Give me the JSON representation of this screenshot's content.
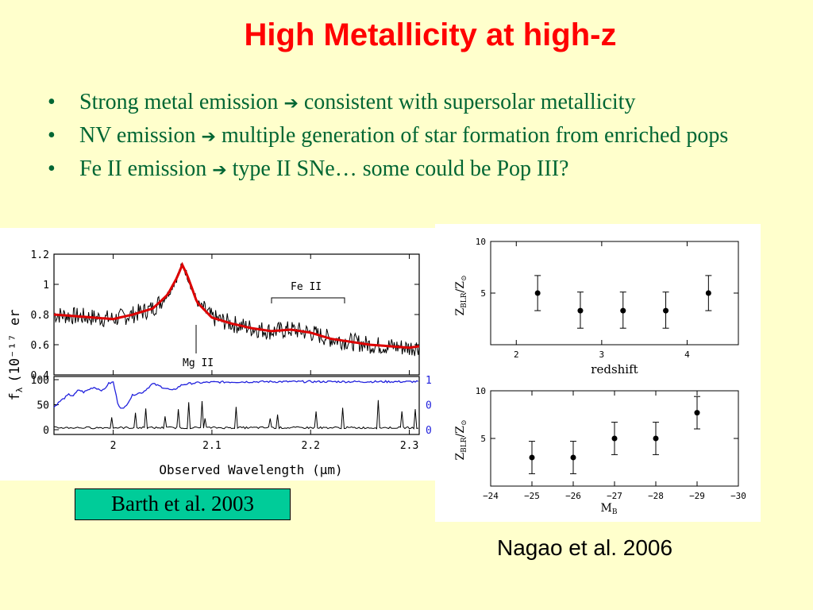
{
  "slide": {
    "title": "High Metallicity at high-z",
    "bullets": [
      {
        "before": "Strong metal emission ",
        "arrow": "➔",
        "after": " consistent with supersolar metallicity"
      },
      {
        "before": "NV emission ",
        "arrow": "➔",
        "after": " multiple generation of star formation from enriched pops"
      },
      {
        "before": "Fe II emission ",
        "arrow": "➔",
        "after": " type II SNe… some could be Pop III?"
      }
    ],
    "bullet_char": "•",
    "caption_left": "Barth et al. 2003",
    "caption_right": "Nagao et al. 2006",
    "colors": {
      "title": "#ff0000",
      "bullets": "#006633",
      "background": "#ffffcc",
      "caption_box": "#00cc99"
    }
  },
  "chart_data": [
    {
      "type": "line",
      "name": "spectrum",
      "ylabel": "f",
      "ylabel_sub": "λ",
      "ylabel_unit": "(10⁻¹⁷ er",
      "xlim": [
        1.94,
        2.31
      ],
      "ylim": [
        0.4,
        1.2
      ],
      "y_ticks": [
        "0.4",
        "0.6",
        "0.8",
        "1",
        "1.2"
      ],
      "annotations": {
        "mgii": "Mg II",
        "feii": "Fe II"
      },
      "colors": {
        "data": "#000000",
        "fit": "#dd0000"
      },
      "fit": {
        "x": [
          1.94,
          1.96,
          1.98,
          2.0,
          2.02,
          2.04,
          2.055,
          2.065,
          2.07,
          2.075,
          2.085,
          2.1,
          2.12,
          2.14,
          2.16,
          2.18,
          2.2,
          2.22,
          2.24,
          2.26,
          2.28,
          2.3,
          2.31
        ],
        "y": [
          0.8,
          0.79,
          0.78,
          0.77,
          0.8,
          0.84,
          0.93,
          1.05,
          1.13,
          1.06,
          0.88,
          0.78,
          0.74,
          0.71,
          0.69,
          0.7,
          0.68,
          0.64,
          0.62,
          0.6,
          0.59,
          0.58,
          0.59
        ]
      }
    },
    {
      "type": "line",
      "name": "transmission",
      "xlabel": "Observed Wavelength (μm)",
      "xlim": [
        1.94,
        2.31
      ],
      "ylim": [
        0,
        100
      ],
      "x_ticks": [
        "2",
        "2.1",
        "2.2",
        "2.3"
      ],
      "y_ticks": [
        "0",
        "50",
        "100"
      ],
      "right_ticks": [
        "0",
        "0",
        "1"
      ],
      "colors": {
        "atmos": "#2222dd",
        "sky": "#000000"
      },
      "atmos": {
        "x": [
          1.94,
          1.945,
          1.955,
          1.96,
          1.965,
          1.97,
          1.98,
          1.99,
          1.995,
          2.0,
          2.005,
          2.01,
          2.02,
          2.03,
          2.04,
          2.05,
          2.06,
          2.07,
          2.08,
          2.1,
          2.15,
          2.2,
          2.25,
          2.31
        ],
        "y": [
          45,
          55,
          70,
          68,
          80,
          75,
          85,
          78,
          92,
          95,
          50,
          40,
          70,
          75,
          92,
          85,
          78,
          90,
          93,
          95,
          96,
          96,
          96,
          96
        ]
      }
    },
    {
      "type": "scatter",
      "name": "redshift-panel",
      "xlabel": "redshift",
      "ylabel": "Z",
      "ylabel_sub": "BLR",
      "ylabel_tail": "/Z",
      "ylabel_sub2": "⊙",
      "xlim": [
        1.7,
        4.6
      ],
      "ylim": [
        0,
        10
      ],
      "x_ticks": [
        "2",
        "3",
        "4"
      ],
      "y_ticks": [
        "5",
        "10"
      ],
      "points": [
        {
          "x": 2.25,
          "y": 5.0,
          "lo": 3.3,
          "hi": 6.7
        },
        {
          "x": 2.75,
          "y": 3.3,
          "lo": 1.6,
          "hi": 5.1
        },
        {
          "x": 3.25,
          "y": 3.3,
          "lo": 1.6,
          "hi": 5.1
        },
        {
          "x": 3.75,
          "y": 3.3,
          "lo": 1.6,
          "hi": 5.1
        },
        {
          "x": 4.25,
          "y": 5.0,
          "lo": 3.3,
          "hi": 6.7
        }
      ]
    },
    {
      "type": "scatter",
      "name": "magnitude-panel",
      "xlabel": "M",
      "xlabel_sub": "B",
      "ylabel": "Z",
      "ylabel_sub": "BLR",
      "ylabel_tail": "/Z",
      "ylabel_sub2": "⊙",
      "xlim": [
        -24,
        -30
      ],
      "ylim": [
        0,
        10
      ],
      "x_ticks": [
        "−24",
        "−25",
        "−26",
        "−27",
        "−28",
        "−29",
        "−30"
      ],
      "y_ticks": [
        "5",
        "10"
      ],
      "points": [
        {
          "x": -25,
          "y": 3.0,
          "lo": 1.3,
          "hi": 4.7
        },
        {
          "x": -26,
          "y": 3.0,
          "lo": 1.3,
          "hi": 4.7
        },
        {
          "x": -27,
          "y": 5.0,
          "lo": 3.3,
          "hi": 6.7
        },
        {
          "x": -28,
          "y": 5.0,
          "lo": 3.3,
          "hi": 6.7
        },
        {
          "x": -29,
          "y": 7.7,
          "lo": 6.0,
          "hi": 9.4
        }
      ]
    }
  ]
}
